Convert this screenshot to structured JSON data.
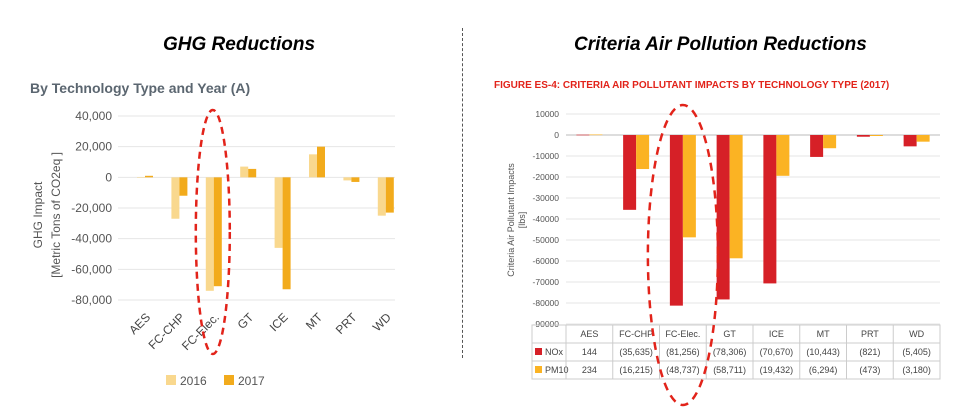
{
  "headings": {
    "left": "GHG Reductions",
    "right": "Criteria Air Pollution Reductions"
  },
  "colors": {
    "ghg_2016": "#f9d88e",
    "ghg_2017": "#f2ab1c",
    "nox": "#d62027",
    "pm10": "#fbb323",
    "highlight": "#e2231a",
    "left_title": "#5b6670",
    "right_title": "#e2231a"
  },
  "chart_data": [
    {
      "type": "bar",
      "title": "By Technology Type and Year (A)",
      "ylabel": "GHG Impact",
      "ylabel2": "[Metric Tons of CO2eq ]",
      "ylim": [
        -80000,
        40000
      ],
      "yticks": [
        "40,000",
        "20,000",
        "0",
        "-20,000",
        "-40,000",
        "-60,000",
        "-80,000"
      ],
      "categories": [
        "AES",
        "FC-CHP",
        "FC-Elec.",
        "GT",
        "ICE",
        "MT",
        "PRT",
        "WD"
      ],
      "series": [
        {
          "name": "2016",
          "values": [
            0,
            -27000,
            -74000,
            7000,
            -46000,
            15000,
            -2000,
            -25000
          ]
        },
        {
          "name": "2017",
          "values": [
            1000,
            -12000,
            -71000,
            5500,
            -73000,
            20000,
            -3000,
            -23000
          ]
        }
      ],
      "grid": true,
      "legend": "bottom",
      "annotation": "dashed ellipse around FC-Elec."
    },
    {
      "type": "bar",
      "title": "FIGURE ES-4: CRITERIA AIR POLLUTANT IMPACTS BY TECHNOLOGY TYPE (2017)",
      "ylabel": "Criteria Air Pollutant Impacts",
      "ylabel2": "[lbs]",
      "ylim": [
        -90000,
        10000
      ],
      "yticks": [
        "10000",
        "0",
        "-10000",
        "-20000",
        "-30000",
        "-40000",
        "-50000",
        "-60000",
        "-70000",
        "-80000",
        "-90000"
      ],
      "categories": [
        "AES",
        "FC-CHP",
        "FC-Elec.",
        "GT",
        "ICE",
        "MT",
        "PRT",
        "WD"
      ],
      "series": [
        {
          "name": "NOx",
          "values": [
            144,
            -35635,
            -81256,
            -78306,
            -70670,
            -10443,
            -821,
            -5405
          ],
          "labels": [
            "144",
            "(35,635)",
            "(81,256)",
            "(78,306)",
            "(70,670)",
            "(10,443)",
            "(821)",
            "(5,405)"
          ]
        },
        {
          "name": "PM10",
          "values": [
            234,
            -16215,
            -48737,
            -58711,
            -19432,
            -6294,
            -473,
            -3180
          ],
          "labels": [
            "234",
            "(16,215)",
            "(48,737)",
            "(58,711)",
            "(19,432)",
            "(6,294)",
            "(473)",
            "(3,180)"
          ]
        }
      ],
      "grid": true,
      "legend": "table",
      "annotation": "dashed ellipse around FC-Elec."
    }
  ]
}
